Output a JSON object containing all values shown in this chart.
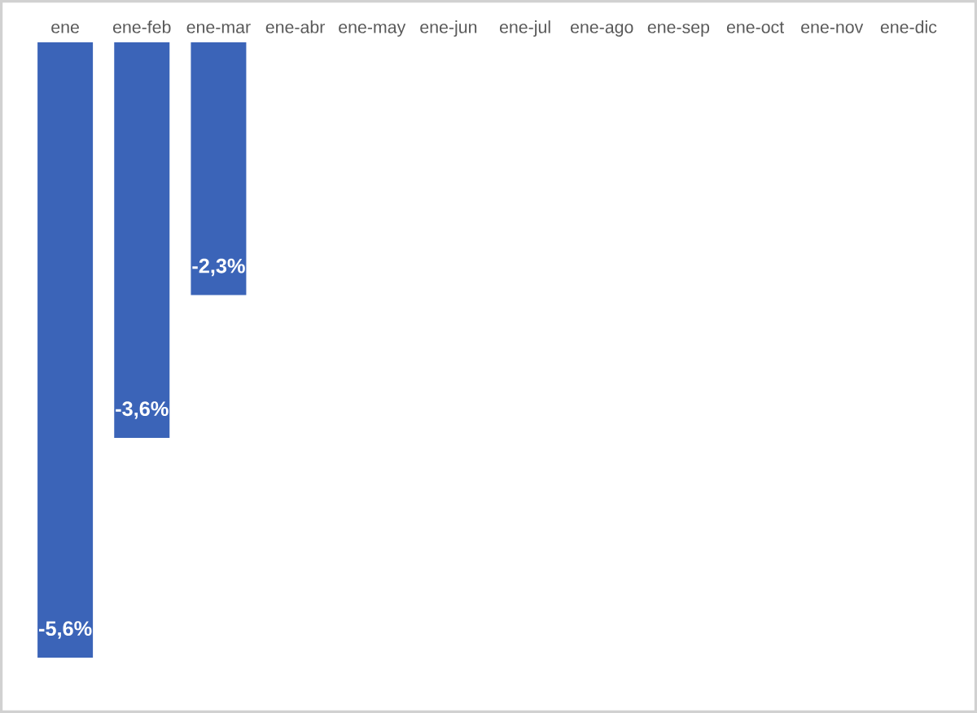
{
  "chart_data": {
    "type": "bar",
    "categories": [
      "ene",
      "ene-feb",
      "ene-mar",
      "ene-abr",
      "ene-may",
      "ene-jun",
      "ene-jul",
      "ene-ago",
      "ene-sep",
      "ene-oct",
      "ene-nov",
      "ene-dic"
    ],
    "values": [
      -5.6,
      -3.6,
      -2.3,
      null,
      null,
      null,
      null,
      null,
      null,
      null,
      null,
      null
    ],
    "value_labels": [
      "-5,6%",
      "-3,6%",
      "-2,3%",
      null,
      null,
      null,
      null,
      null,
      null,
      null,
      null,
      null
    ],
    "color": "#3b64b8"
  }
}
